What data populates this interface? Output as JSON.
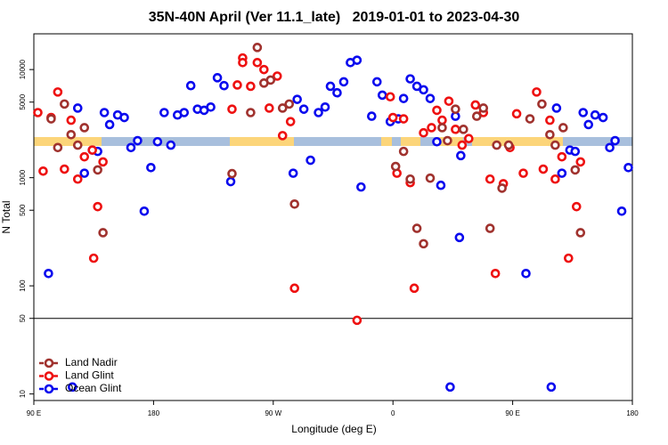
{
  "chart_data": {
    "type": "scatter",
    "title": "35N-40N April (Ver 11.1_late)   2019-01-01 to 2023-04-30",
    "x_label": "Longitude (deg E)",
    "y_label": "N Total",
    "log_y": true,
    "legend": "bottom-left",
    "reference_line": 50,
    "xlim": [
      90,
      540
    ],
    "xticks": [
      {
        "value": 90,
        "label": "90 E"
      },
      180,
      {
        "value": 270,
        "label": "90 W"
      },
      {
        "value": 360,
        "label": "0"
      },
      {
        "value": 450,
        "label": "90 E"
      },
      {
        "value": 540,
        "label": "180"
      }
    ],
    "ylim": [
      8.7,
      21400
    ],
    "yticks": [
      10,
      50,
      100,
      500,
      1000,
      5000,
      10000
    ],
    "series": [
      {
        "name": "Land Nadir",
        "color": "#a0322e",
        "x": [
          103,
          108,
          113,
          118,
          123,
          128,
          138,
          142,
          239,
          253,
          258,
          263,
          268,
          277,
          282,
          286,
          362,
          368,
          373,
          378,
          383,
          388,
          397,
          401,
          407,
          413,
          423,
          428,
          433,
          438,
          442,
          447,
          463,
          472,
          478,
          482,
          488,
          497,
          501
        ],
        "values": [
          3500,
          1900,
          4800,
          2500,
          2000,
          2900,
          1180,
          310,
          1090,
          4000,
          16000,
          7500,
          8000,
          4400,
          4800,
          570,
          1270,
          1750,
          970,
          340,
          245,
          990,
          2900,
          2200,
          4300,
          2800,
          3700,
          4400,
          340,
          2000,
          800,
          2000,
          3500,
          4800,
          2500,
          2000,
          2900,
          1180,
          310
        ]
      },
      {
        "name": "Land Glint",
        "color": "#ee1111",
        "x": [
          93,
          97,
          103,
          108,
          113,
          118,
          123,
          128,
          134,
          135,
          138,
          142,
          239,
          243,
          247,
          247,
          253,
          258,
          263,
          267,
          273,
          277,
          283,
          286,
          333,
          358,
          360,
          363,
          368,
          373,
          376,
          383,
          389,
          393,
          397,
          402,
          407,
          412,
          417,
          422,
          428,
          433,
          437,
          443,
          448,
          453,
          458,
          468,
          473,
          478,
          482,
          487,
          492,
          498,
          501
        ],
        "values": [
          4000,
          1150,
          3600,
          6200,
          1200,
          3400,
          970,
          1560,
          1800,
          180,
          540,
          1400,
          4300,
          7200,
          12800,
          11600,
          7000,
          11600,
          10000,
          4400,
          8700,
          2450,
          3300,
          95,
          48,
          5600,
          3600,
          1100,
          3500,
          900,
          95,
          2600,
          2900,
          4200,
          3400,
          5100,
          2800,
          2000,
          2300,
          4700,
          4000,
          970,
          130,
          880,
          1900,
          3900,
          1100,
          6200,
          1200,
          3400,
          970,
          1560,
          180,
          540,
          1400
        ]
      },
      {
        "name": "Ocean Glint",
        "color": "#0a0aee",
        "x": [
          101,
          119,
          123,
          128,
          134,
          138,
          143,
          147,
          153,
          158,
          163,
          168,
          173,
          178,
          183,
          188,
          193,
          198,
          203,
          208,
          213,
          218,
          223,
          228,
          233,
          238,
          285,
          288,
          293,
          298,
          304,
          309,
          313,
          318,
          323,
          328,
          333,
          336,
          344,
          348,
          352,
          358,
          364,
          368,
          373,
          378,
          383,
          388,
          393,
          396,
          403,
          407,
          410,
          411,
          460,
          479,
          483,
          487,
          493,
          497,
          503,
          507,
          512,
          518,
          523,
          527,
          532,
          537
        ],
        "values": [
          130,
          11.6,
          4400,
          1100,
          1800,
          1750,
          4000,
          3100,
          3800,
          3600,
          1900,
          2200,
          490,
          1240,
          2150,
          4000,
          2000,
          3800,
          4000,
          7100,
          4300,
          4200,
          4500,
          8400,
          7100,
          920,
          1100,
          5300,
          4300,
          1450,
          4000,
          4500,
          7000,
          6100,
          7700,
          11600,
          12200,
          820,
          3700,
          7700,
          5800,
          3300,
          3500,
          5400,
          8200,
          7000,
          6500,
          5400,
          2150,
          850,
          11.6,
          3700,
          280,
          1600,
          130,
          11.6,
          4400,
          1100,
          1800,
          1750,
          4000,
          3100,
          3800,
          3600,
          1900,
          2200,
          490,
          1240
        ]
      }
    ]
  }
}
